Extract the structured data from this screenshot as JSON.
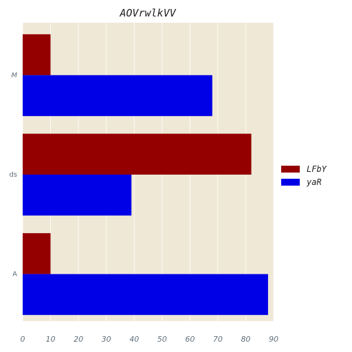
{
  "chart_data": {
    "type": "bar",
    "orientation": "horizontal",
    "title": "AOVrwlkVV",
    "xlabel": "",
    "ylabel": "",
    "categories": [
      "M",
      "ds",
      "A"
    ],
    "xlim": [
      0,
      90
    ],
    "xticks": [
      "0",
      "10",
      "20",
      "30",
      "40",
      "50",
      "60",
      "70",
      "80",
      "90"
    ],
    "grid": true,
    "legend_position": "right",
    "series": [
      {
        "name": "LFbY",
        "color": "#940000",
        "values": [
          10,
          82,
          10
        ]
      },
      {
        "name": "yaR",
        "color": "#0000e6",
        "values": [
          68,
          39,
          88
        ]
      }
    ],
    "plot_background": "#efe8d6",
    "grid_color": "#ffffff"
  }
}
